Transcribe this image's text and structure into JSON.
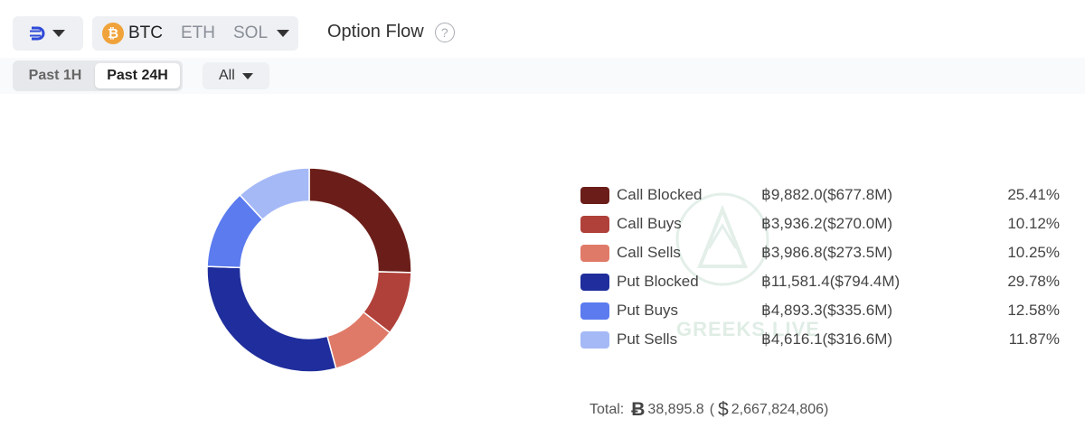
{
  "toolbar": {
    "coins": [
      "BTC",
      "ETH",
      "SOL"
    ],
    "selected_coin": "BTC",
    "title": "Option Flow",
    "help_icon": "question-circle-icon",
    "exchange_icon": "deribit-logo-icon"
  },
  "filters": {
    "time_options": [
      "Past 1H",
      "Past 24H"
    ],
    "selected_time": "Past 24H",
    "type_filter": "All"
  },
  "colors": {
    "Call Blocked": "#6b1e19",
    "Call Buys": "#b0413a",
    "Call Sells": "#e07a68",
    "Put Blocked": "#1f2e9c",
    "Put Buys": "#5b7bef",
    "Put Sells": "#a5b9f7"
  },
  "chart_data": {
    "type": "pie",
    "donut": true,
    "categories": [
      "Call Blocked",
      "Call Buys",
      "Call Sells",
      "Put Blocked",
      "Put Buys",
      "Put Sells"
    ],
    "values": [
      25.41,
      10.12,
      10.25,
      29.78,
      12.58,
      11.87
    ],
    "btc_amounts": [
      9882.0,
      3936.2,
      3986.8,
      11581.4,
      4893.3,
      4616.1
    ],
    "rows": [
      {
        "label": "Call Blocked",
        "value_text": "฿9,882.0($677.8M)",
        "pct_text": "25.41%"
      },
      {
        "label": "Call Buys",
        "value_text": "฿3,936.2($270.0M)",
        "pct_text": "10.12%"
      },
      {
        "label": "Call Sells",
        "value_text": "฿3,986.8($273.5M)",
        "pct_text": "10.25%"
      },
      {
        "label": "Put Blocked",
        "value_text": "฿11,581.4($794.4M)",
        "pct_text": "29.78%"
      },
      {
        "label": "Put Buys",
        "value_text": "฿4,893.3($335.6M)",
        "pct_text": "12.58%"
      },
      {
        "label": "Put Sells",
        "value_text": "฿4,616.1($316.6M)",
        "pct_text": "11.87%"
      }
    ],
    "legend_position": "right"
  },
  "total": {
    "label": "Total:",
    "btc_symbol": "Ƀ",
    "btc_value": "38,895.8",
    "usd_open": "(",
    "usd_symbol": "$",
    "usd_value": "2,667,824,806)"
  },
  "watermark": {
    "text": "GREEKS.LIVE"
  }
}
